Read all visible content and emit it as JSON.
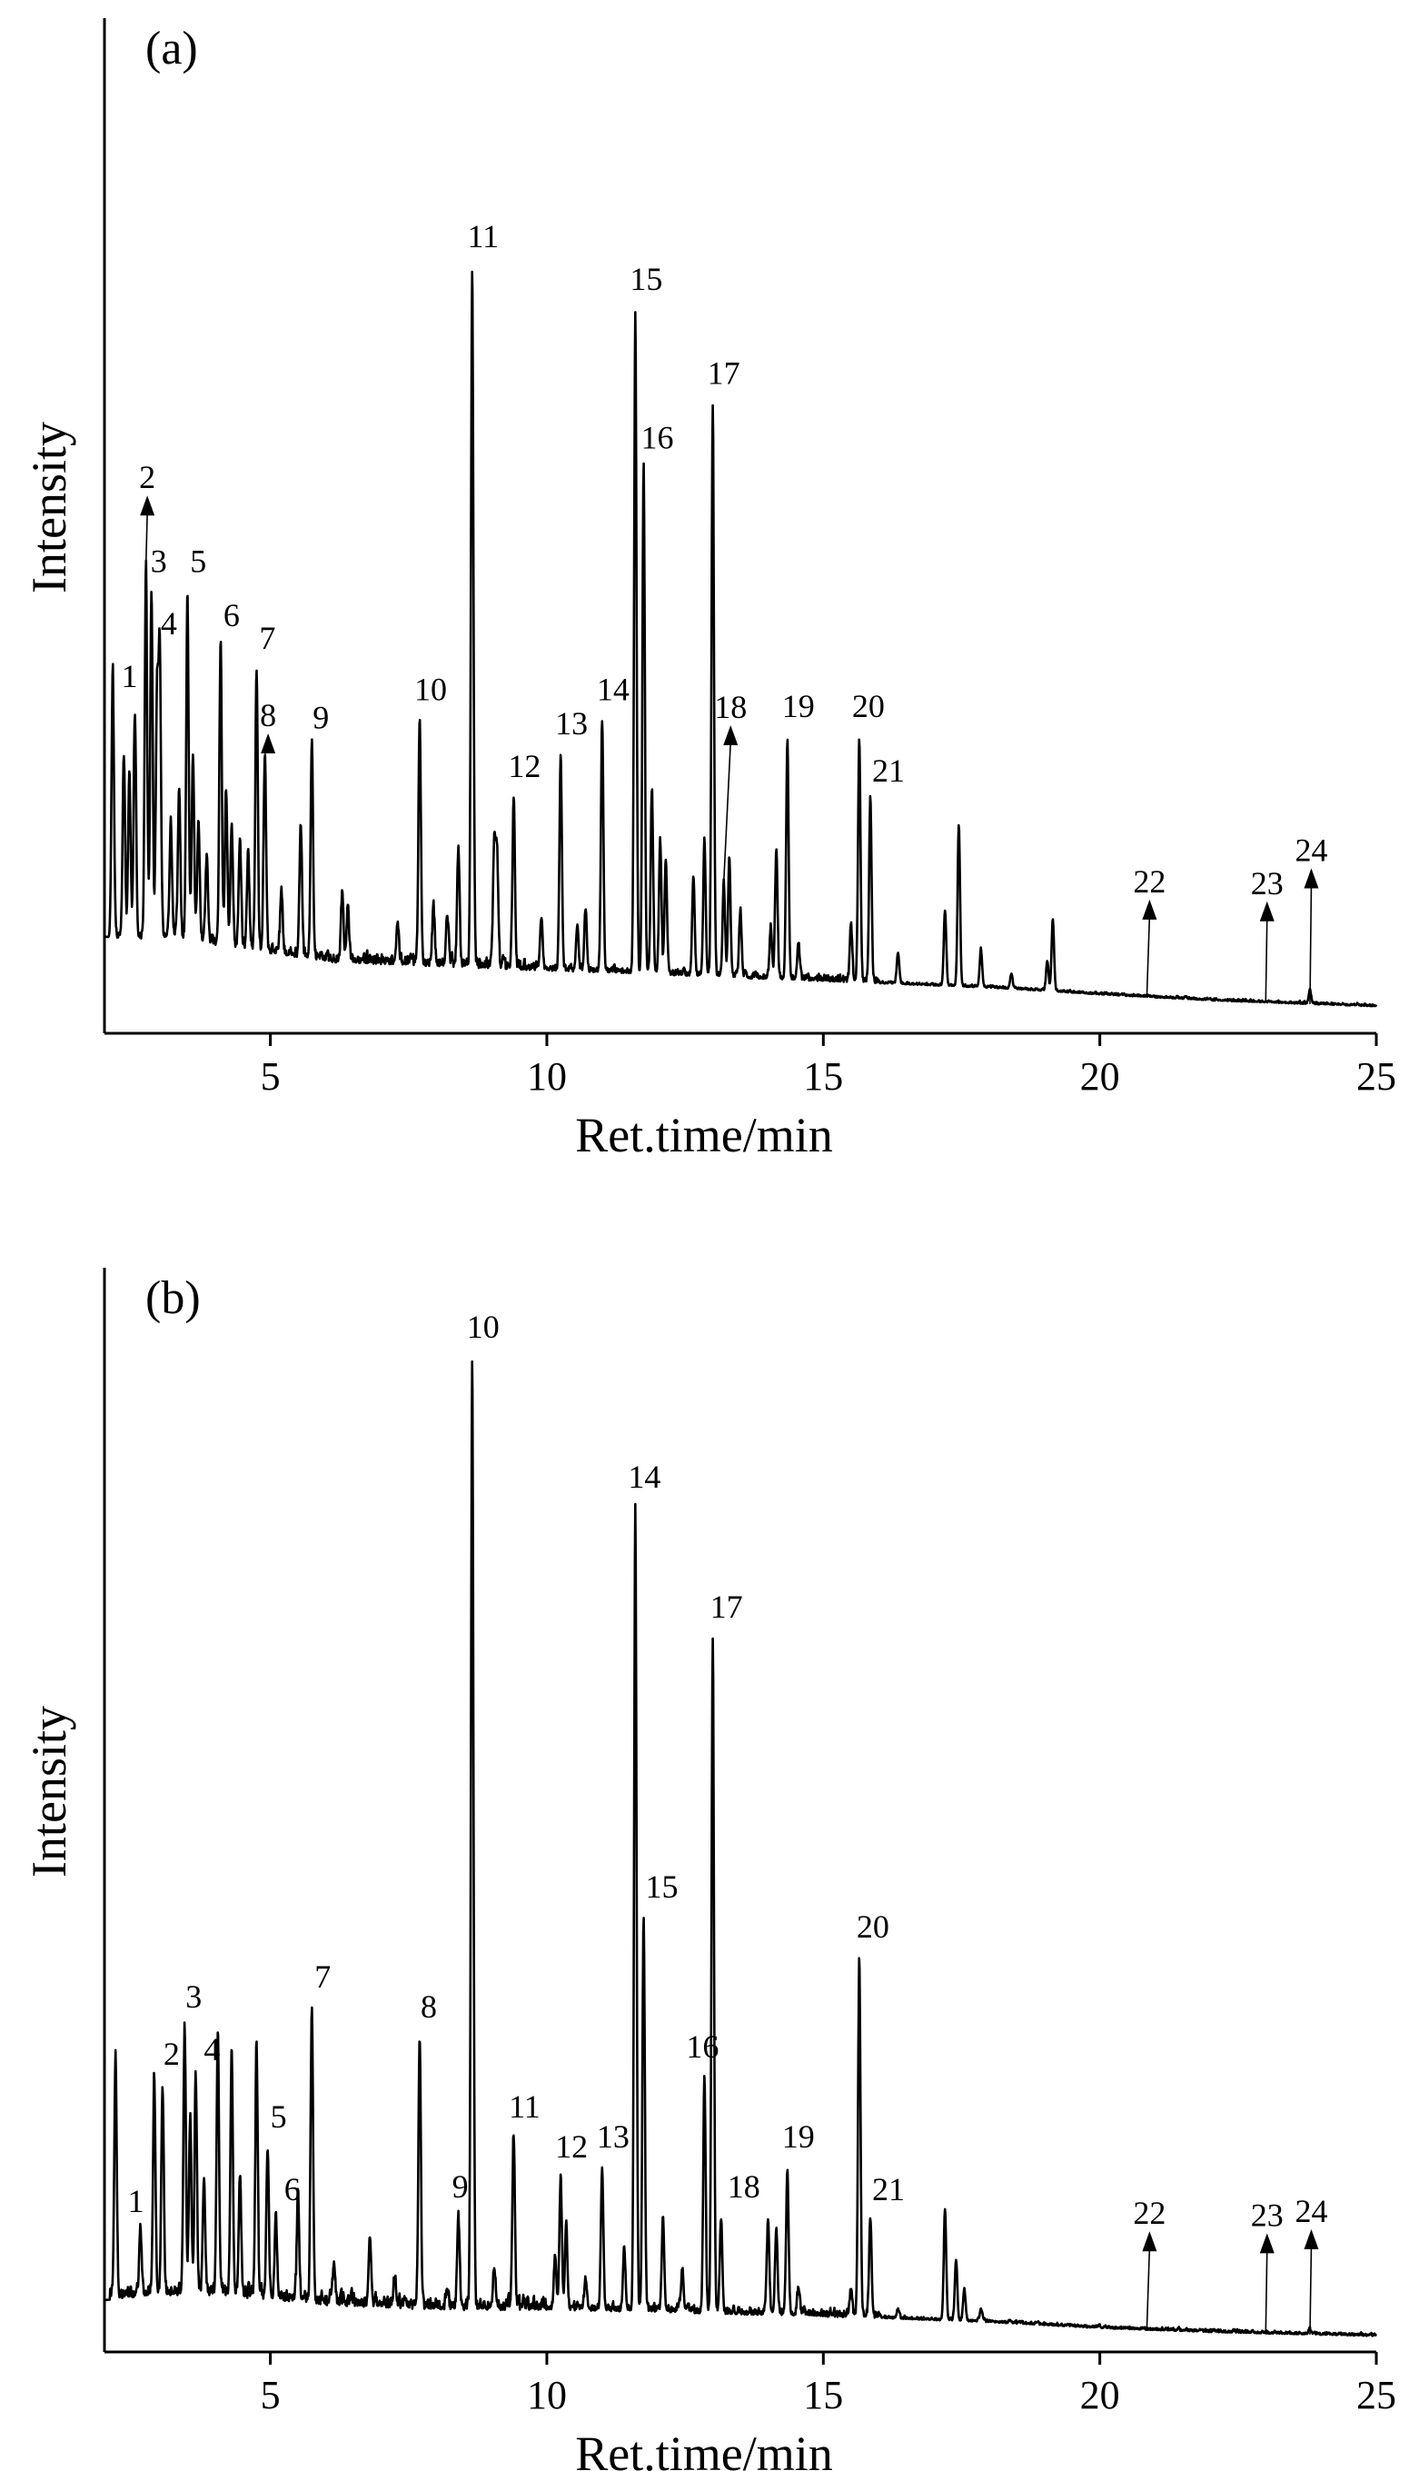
{
  "chart_data": [
    {
      "type": "line",
      "panel_label": "(a)",
      "xlabel": "Ret.time/min",
      "ylabel": "Intensity",
      "xlim": [
        2,
        25
      ],
      "ylim": [
        0,
        100
      ],
      "xticks": [
        5,
        10,
        15,
        20,
        25
      ],
      "baseline": [
        [
          2.0,
          9
        ],
        [
          2.4,
          8.5
        ],
        [
          3,
          9
        ],
        [
          4,
          8
        ],
        [
          5,
          7
        ],
        [
          6,
          6
        ],
        [
          8,
          5.5
        ],
        [
          10,
          5
        ],
        [
          12,
          4.5
        ],
        [
          14,
          4
        ],
        [
          16,
          3.5
        ],
        [
          18,
          3
        ],
        [
          20,
          2.2
        ],
        [
          22,
          1.5
        ],
        [
          25,
          0.8
        ]
      ],
      "peaks": [
        {
          "label": "1",
          "x": 2.55,
          "y": 35
        },
        {
          "label": "2",
          "x": 2.75,
          "y": 52
        },
        {
          "label": "3",
          "x": 2.85,
          "y": 49
        },
        {
          "label": "4",
          "x": 3.0,
          "y": 42
        },
        {
          "label": "5",
          "x": 3.5,
          "y": 49
        },
        {
          "label": "6",
          "x": 4.1,
          "y": 43
        },
        {
          "label": "7",
          "x": 4.75,
          "y": 40
        },
        {
          "label": "8",
          "x": 4.9,
          "y": 30
        },
        {
          "label": "9",
          "x": 5.75,
          "y": 31
        },
        {
          "label": "10",
          "x": 7.7,
          "y": 34
        },
        {
          "label": "11",
          "x": 8.65,
          "y": 87
        },
        {
          "label": "12",
          "x": 9.4,
          "y": 25
        },
        {
          "label": "13",
          "x": 10.25,
          "y": 30
        },
        {
          "label": "14",
          "x": 11.0,
          "y": 34
        },
        {
          "label": "15",
          "x": 11.6,
          "y": 82
        },
        {
          "label": "16",
          "x": 11.75,
          "y": 64
        },
        {
          "label": "17",
          "x": 13.0,
          "y": 71
        },
        {
          "label": "18",
          "x": 13.2,
          "y": 15
        },
        {
          "label": "19",
          "x": 14.35,
          "y": 32
        },
        {
          "label": "20",
          "x": 15.65,
          "y": 32
        },
        {
          "label": "21",
          "x": 15.85,
          "y": 25
        },
        {
          "label": "22",
          "x": 20.85,
          "y": 1.5
        },
        {
          "label": "23",
          "x": 23.0,
          "y": 1.3
        },
        {
          "label": "24",
          "x": 23.8,
          "y": 2.5
        }
      ],
      "minor_peaks": [
        [
          2.15,
          40
        ],
        [
          2.35,
          30
        ],
        [
          2.45,
          28
        ],
        [
          2.95,
          36
        ],
        [
          3.2,
          22
        ],
        [
          3.35,
          26
        ],
        [
          3.6,
          30
        ],
        [
          3.7,
          22
        ],
        [
          3.85,
          18
        ],
        [
          4.2,
          26
        ],
        [
          4.3,
          22
        ],
        [
          4.45,
          20
        ],
        [
          4.6,
          18
        ],
        [
          5.2,
          14
        ],
        [
          5.55,
          22
        ],
        [
          6.3,
          14
        ],
        [
          6.4,
          12
        ],
        [
          7.3,
          10
        ],
        [
          7.95,
          12
        ],
        [
          8.2,
          11
        ],
        [
          8.4,
          19
        ],
        [
          9.05,
          20
        ],
        [
          9.1,
          18
        ],
        [
          9.9,
          11
        ],
        [
          10.55,
          10
        ],
        [
          10.7,
          12
        ],
        [
          11.9,
          26
        ],
        [
          12.05,
          20
        ],
        [
          12.15,
          18
        ],
        [
          12.85,
          20
        ],
        [
          12.65,
          16
        ],
        [
          13.3,
          18
        ],
        [
          13.5,
          12
        ],
        [
          14.05,
          10
        ],
        [
          14.15,
          19
        ],
        [
          14.55,
          8
        ],
        [
          15.5,
          10
        ],
        [
          16.35,
          7
        ],
        [
          17.2,
          12
        ],
        [
          17.45,
          22
        ],
        [
          17.85,
          7.5
        ],
        [
          18.4,
          4.5
        ],
        [
          19.05,
          6
        ],
        [
          19.15,
          11
        ]
      ]
    },
    {
      "type": "line",
      "panel_label": "(b)",
      "xlabel": "Ret.time/min",
      "ylabel": "Intensity",
      "xlim": [
        2,
        25
      ],
      "ylim": [
        0,
        100
      ],
      "xticks": [
        5,
        10,
        15,
        20,
        25
      ],
      "baseline": [
        [
          2.0,
          4
        ],
        [
          3,
          4.5
        ],
        [
          4,
          4.5
        ],
        [
          5,
          4
        ],
        [
          6,
          3.5
        ],
        [
          8,
          3
        ],
        [
          10,
          3
        ],
        [
          12,
          2.8
        ],
        [
          14,
          2.5
        ],
        [
          16,
          2.2
        ],
        [
          18,
          1.8
        ],
        [
          20,
          1.2
        ],
        [
          22,
          0.8
        ],
        [
          25,
          0.4
        ]
      ],
      "peaks": [
        {
          "label": "1",
          "x": 2.65,
          "y": 11
        },
        {
          "label": "2",
          "x": 3.05,
          "y": 25
        },
        {
          "label": "3",
          "x": 3.45,
          "y": 31
        },
        {
          "label": "4",
          "x": 3.65,
          "y": 26
        },
        {
          "label": "5",
          "x": 4.95,
          "y": 19
        },
        {
          "label": "6",
          "x": 5.1,
          "y": 12
        },
        {
          "label": "7",
          "x": 5.75,
          "y": 33
        },
        {
          "label": "8",
          "x": 7.7,
          "y": 30
        },
        {
          "label": "9",
          "x": 8.4,
          "y": 12
        },
        {
          "label": "10",
          "x": 8.65,
          "y": 98
        },
        {
          "label": "11",
          "x": 9.4,
          "y": 20
        },
        {
          "label": "12",
          "x": 10.25,
          "y": 16
        },
        {
          "label": "13",
          "x": 11.0,
          "y": 17
        },
        {
          "label": "14",
          "x": 11.6,
          "y": 83
        },
        {
          "label": "15",
          "x": 11.75,
          "y": 42
        },
        {
          "label": "16",
          "x": 12.85,
          "y": 26
        },
        {
          "label": "17",
          "x": 13.0,
          "y": 70
        },
        {
          "label": "18",
          "x": 13.15,
          "y": 12
        },
        {
          "label": "19",
          "x": 14.35,
          "y": 17
        },
        {
          "label": "20",
          "x": 15.65,
          "y": 38
        },
        {
          "label": "21",
          "x": 15.85,
          "y": 12
        },
        {
          "label": "22",
          "x": 20.85,
          "y": 0.8
        },
        {
          "label": "23",
          "x": 23.0,
          "y": 0.6
        },
        {
          "label": "24",
          "x": 23.8,
          "y": 1.0
        }
      ],
      "minor_peaks": [
        [
          2.2,
          28
        ],
        [
          2.9,
          26
        ],
        [
          3.55,
          22
        ],
        [
          3.8,
          16
        ],
        [
          4.05,
          30
        ],
        [
          4.3,
          29
        ],
        [
          4.45,
          16
        ],
        [
          4.75,
          29
        ],
        [
          5.5,
          14
        ],
        [
          6.15,
          7
        ],
        [
          6.8,
          10
        ],
        [
          7.25,
          6
        ],
        [
          8.2,
          5
        ],
        [
          9.05,
          7
        ],
        [
          10.15,
          8
        ],
        [
          10.35,
          11
        ],
        [
          10.7,
          6
        ],
        [
          11.4,
          9
        ],
        [
          12.1,
          12
        ],
        [
          12.45,
          7
        ],
        [
          14.0,
          12
        ],
        [
          14.15,
          11
        ],
        [
          14.55,
          5
        ],
        [
          15.5,
          5
        ],
        [
          16.35,
          3
        ],
        [
          17.2,
          13
        ],
        [
          17.4,
          8
        ],
        [
          17.55,
          5
        ],
        [
          17.85,
          3
        ]
      ]
    }
  ]
}
